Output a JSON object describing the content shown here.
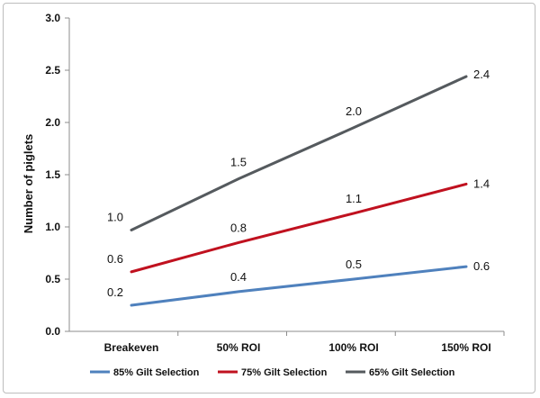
{
  "chart_data": {
    "type": "line",
    "title": "",
    "xlabel": "",
    "ylabel": "Number of piglets",
    "categories": [
      "Breakeven",
      "50% ROI",
      "100% ROI",
      "150% ROI"
    ],
    "ylim": [
      0,
      3.0
    ],
    "yticks": [
      "0.0",
      "0.5",
      "1.0",
      "1.5",
      "2.0",
      "2.5",
      "3.0"
    ],
    "grid": false,
    "legend_position": "bottom",
    "series": [
      {
        "name": "85% Gilt Selection",
        "color": "#4f81bd",
        "values": [
          0.25,
          0.38,
          0.5,
          0.62
        ],
        "labels": [
          "0.2",
          "0.4",
          "0.5",
          "0.6"
        ]
      },
      {
        "name": "75% Gilt Selection",
        "color": "#c0111f",
        "values": [
          0.57,
          0.85,
          1.13,
          1.41
        ],
        "labels": [
          "0.6",
          "0.8",
          "1.1",
          "1.4"
        ]
      },
      {
        "name": "65% Gilt Selection",
        "color": "#555a5e",
        "values": [
          0.97,
          1.46,
          1.95,
          2.44
        ],
        "labels": [
          "1.0",
          "1.5",
          "2.0",
          "2.4"
        ]
      }
    ]
  }
}
